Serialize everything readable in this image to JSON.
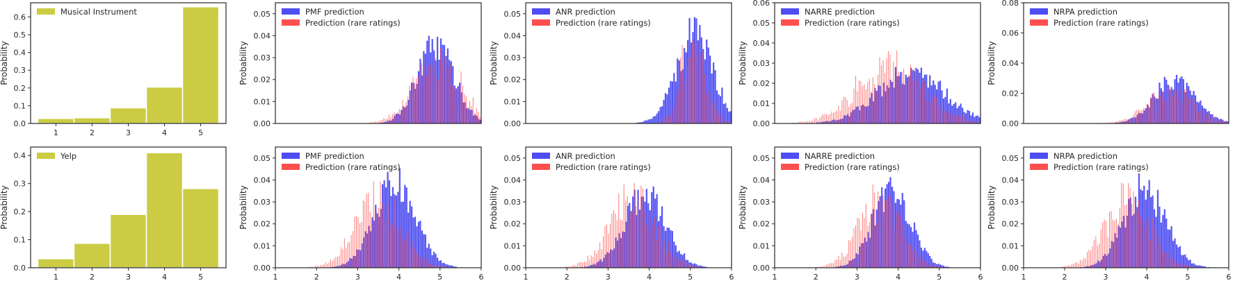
{
  "colors": {
    "olive": "#cccc44",
    "blue": "#3a3af0",
    "red": "#ff3c3c",
    "axis": "#262626"
  },
  "chart_data": [
    {
      "type": "bar",
      "legend": [
        "Musical Instrument"
      ],
      "ylabel": "Probability",
      "categories": [
        "1",
        "2",
        "3",
        "4",
        "5"
      ],
      "values": [
        0.028,
        0.032,
        0.088,
        0.205,
        0.657
      ],
      "xlim": [
        0.3,
        5.7
      ],
      "ylim": [
        0,
        0.68
      ],
      "xticks": [
        "1",
        "2",
        "3",
        "4",
        "5"
      ],
      "yticks": [
        "0.0",
        "0.1",
        "0.2",
        "0.3",
        "0.4",
        "0.5",
        "0.6"
      ],
      "legend_position": "upper left"
    },
    {
      "type": "bar",
      "ylabel": "Probability",
      "legend": [
        "PMF prediction",
        "Prediction (rare ratings)"
      ],
      "xlim": [
        1,
        6
      ],
      "ylim": [
        0,
        0.055
      ],
      "xticks": [],
      "yticks": [
        "0.00",
        "0.01",
        "0.02",
        "0.03",
        "0.04",
        "0.05"
      ],
      "series": [
        {
          "name": "PMF prediction",
          "mean": 4.9,
          "sd": 0.45,
          "peak": 0.035
        },
        {
          "name": "Prediction (rare ratings)",
          "mean": 4.9,
          "sd": 0.55,
          "peak": 0.03
        }
      ]
    },
    {
      "type": "bar",
      "ylabel": "Probability",
      "legend": [
        "ANR prediction",
        "Prediction (rare ratings)"
      ],
      "xlim": [
        1,
        6
      ],
      "ylim": [
        0,
        0.055
      ],
      "xticks": [],
      "yticks": [
        "0.00",
        "0.01",
        "0.02",
        "0.03",
        "0.04",
        "0.05"
      ],
      "series": [
        {
          "name": "ANR prediction",
          "mean": 5.1,
          "sd": 0.45,
          "peak": 0.04
        },
        {
          "name": "Prediction (rare ratings)",
          "mean": 5.1,
          "sd": 0.3,
          "peak": 0.035
        }
      ]
    },
    {
      "type": "bar",
      "ylabel": "Probability",
      "legend": [
        "NARRE prediction",
        "Prediction (rare ratings)"
      ],
      "xlim": [
        1,
        6
      ],
      "ylim": [
        0,
        0.06
      ],
      "xticks": [],
      "yticks": [
        "0.00",
        "0.01",
        "0.02",
        "0.03",
        "0.04",
        "0.05",
        "0.06"
      ],
      "series": [
        {
          "name": "NARRE prediction",
          "mean": 4.3,
          "sd": 0.8,
          "peak": 0.026
        },
        {
          "name": "Prediction (rare ratings)",
          "mean": 3.8,
          "sd": 0.8,
          "peak": 0.03
        }
      ]
    },
    {
      "type": "bar",
      "ylabel": "Probability",
      "legend": [
        "NRPA prediction",
        "Prediction (rare ratings)"
      ],
      "xlim": [
        1,
        6
      ],
      "ylim": [
        0,
        0.08
      ],
      "xticks": [],
      "yticks": [
        "0.00",
        "0.02",
        "0.04",
        "0.06",
        "0.08"
      ],
      "series": [
        {
          "name": "NRPA prediction",
          "mean": 4.7,
          "sd": 0.5,
          "peak": 0.03
        },
        {
          "name": "Prediction (rare ratings)",
          "mean": 4.6,
          "sd": 0.55,
          "peak": 0.025
        }
      ]
    },
    {
      "type": "bar",
      "legend": [
        "Yelp"
      ],
      "ylabel": "Probability",
      "categories": [
        "1",
        "2",
        "3",
        "4",
        "5"
      ],
      "values": [
        0.032,
        0.087,
        0.19,
        0.41,
        0.282
      ],
      "xlim": [
        0.3,
        5.7
      ],
      "ylim": [
        0,
        0.43
      ],
      "xticks": [
        "1",
        "2",
        "3",
        "4",
        "5"
      ],
      "yticks": [
        "0.0",
        "0.1",
        "0.2",
        "0.3",
        "0.4"
      ],
      "legend_position": "upper left"
    },
    {
      "type": "bar",
      "ylabel": "Probability",
      "legend": [
        "PMF prediction",
        "Prediction (rare ratings)"
      ],
      "xlim": [
        1,
        6
      ],
      "ylim": [
        0,
        0.055
      ],
      "xticks": [
        "1",
        "2",
        "3",
        "4",
        "5",
        "6"
      ],
      "yticks": [
        "0.00",
        "0.01",
        "0.02",
        "0.03",
        "0.04",
        "0.05"
      ],
      "series": [
        {
          "name": "PMF prediction",
          "mean": 3.9,
          "sd": 0.5,
          "peak": 0.038
        },
        {
          "name": "Prediction (rare ratings)",
          "mean": 3.5,
          "sd": 0.55,
          "peak": 0.035
        }
      ]
    },
    {
      "type": "bar",
      "ylabel": "Probability",
      "legend": [
        "ANR prediction",
        "Prediction (rare ratings)"
      ],
      "xlim": [
        1,
        6
      ],
      "ylim": [
        0,
        0.055
      ],
      "xticks": [
        "1",
        "2",
        "3",
        "4",
        "5",
        "6"
      ],
      "yticks": [
        "0.00",
        "0.01",
        "0.02",
        "0.03",
        "0.04",
        "0.05"
      ],
      "series": [
        {
          "name": "ANR prediction",
          "mean": 3.9,
          "sd": 0.5,
          "peak": 0.033
        },
        {
          "name": "Prediction (rare ratings)",
          "mean": 3.6,
          "sd": 0.55,
          "peak": 0.035
        }
      ]
    },
    {
      "type": "bar",
      "ylabel": "Probability",
      "legend": [
        "NARRE prediction",
        "Prediction (rare ratings)"
      ],
      "xlim": [
        1,
        6
      ],
      "ylim": [
        0,
        0.055
      ],
      "xticks": [
        "1",
        "2",
        "3",
        "4",
        "5",
        "6"
      ],
      "yticks": [
        "0.00",
        "0.01",
        "0.02",
        "0.03",
        "0.04",
        "0.05"
      ],
      "series": [
        {
          "name": "NARRE prediction",
          "mean": 3.85,
          "sd": 0.45,
          "peak": 0.037
        },
        {
          "name": "Prediction (rare ratings)",
          "mean": 3.55,
          "sd": 0.5,
          "peak": 0.034
        }
      ]
    },
    {
      "type": "bar",
      "ylabel": "Probability",
      "legend": [
        "NRPA prediction",
        "Prediction (rare ratings)"
      ],
      "xlim": [
        1,
        6
      ],
      "ylim": [
        0,
        0.055
      ],
      "xticks": [
        "1",
        "2",
        "3",
        "4",
        "5",
        "6"
      ],
      "yticks": [
        "0.00",
        "0.01",
        "0.02",
        "0.03",
        "0.04",
        "0.05"
      ],
      "series": [
        {
          "name": "NRPA prediction",
          "mean": 3.95,
          "sd": 0.5,
          "peak": 0.036
        },
        {
          "name": "Prediction (rare ratings)",
          "mean": 3.55,
          "sd": 0.55,
          "peak": 0.034
        }
      ]
    }
  ]
}
